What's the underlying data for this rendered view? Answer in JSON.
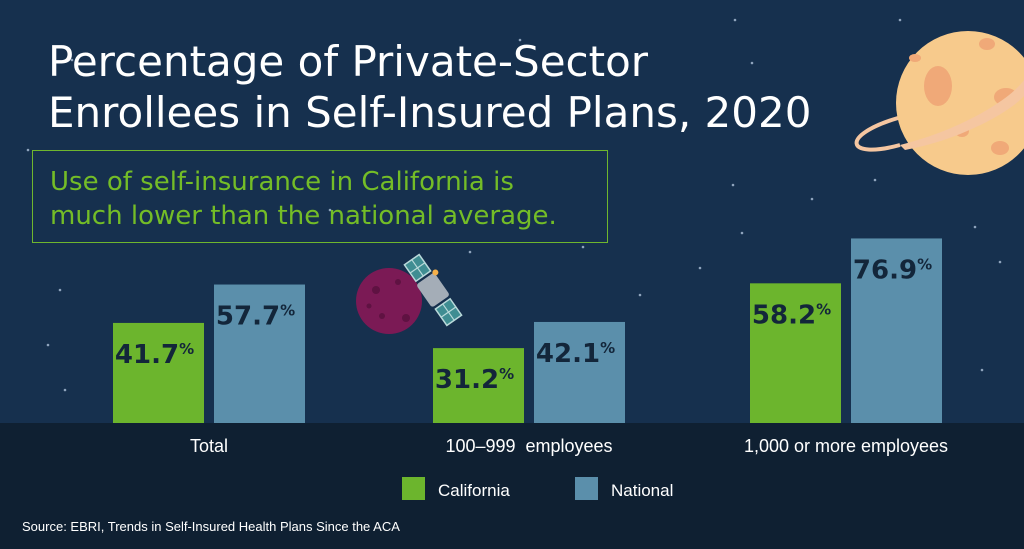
{
  "colors": {
    "background": "#16304e",
    "footer_band": "#0f2032",
    "california": "#6cb52d",
    "national": "#5b8fab",
    "value_text": "#13263a",
    "callout_text": "#74bd27"
  },
  "title_lines": [
    "Percentage of Private-Sector",
    "Enrollees in Self-Insured Plans, 2020"
  ],
  "callout_lines": [
    "Use of self-insurance in California is",
    "much lower than the national average."
  ],
  "source": "Source: EBRI, Trends in Self-Insured Health Plans Since the ACA",
  "decorations": {
    "planet_icon": "planet-icon",
    "moon_icon": "moon-icon",
    "satellite_icon": "satellite-icon"
  },
  "chart_data": {
    "type": "bar",
    "categories": [
      "Total",
      "100–999  employees",
      "1,000 or more employees"
    ],
    "series": [
      {
        "name": "California",
        "values": [
          41.7,
          31.2,
          58.2
        ],
        "color": "#6cb52d"
      },
      {
        "name": "National",
        "values": [
          57.7,
          42.1,
          76.9
        ],
        "color": "#5b8fab"
      }
    ],
    "value_suffix": "%",
    "legend_placement": "bottom-center",
    "grid": false
  }
}
